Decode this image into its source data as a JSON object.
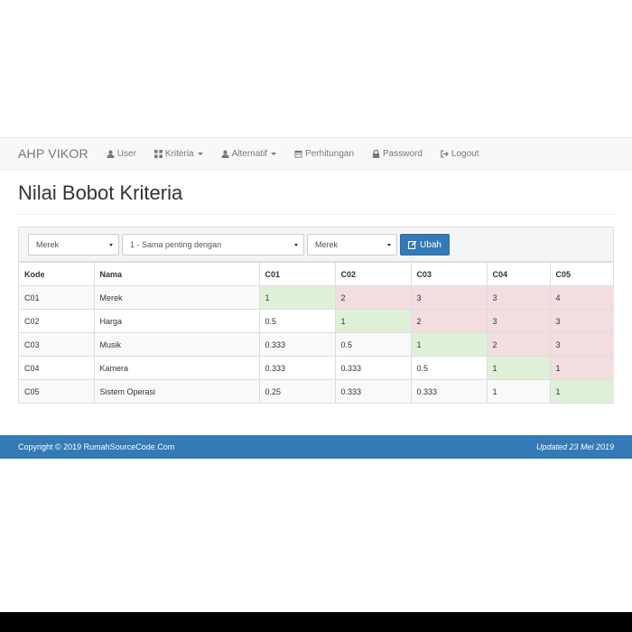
{
  "navbar": {
    "brand": "AHP VIKOR",
    "items": [
      {
        "label": "User",
        "icon": "user-icon",
        "dropdown": false
      },
      {
        "label": "Kriteria",
        "icon": "grid-icon",
        "dropdown": true
      },
      {
        "label": "Alternatif",
        "icon": "user-icon",
        "dropdown": true
      },
      {
        "label": "Perhitungan",
        "icon": "calendar-icon",
        "dropdown": false
      },
      {
        "label": "Password",
        "icon": "lock-icon",
        "dropdown": false
      },
      {
        "label": "Logout",
        "icon": "logout-icon",
        "dropdown": false
      }
    ]
  },
  "page": {
    "title": "Nilai Bobot Kriteria"
  },
  "form": {
    "select1": "Merek",
    "select2": "1 - Sama penting dengan",
    "select3": "Merek",
    "button": "Ubah"
  },
  "table": {
    "headers": [
      "Kode",
      "Nama",
      "C01",
      "C02",
      "C03",
      "C04",
      "C05"
    ],
    "rows": [
      [
        "C01",
        "Merek",
        "1",
        "2",
        "3",
        "3",
        "4"
      ],
      [
        "C02",
        "Harga",
        "0.5",
        "1",
        "2",
        "3",
        "3"
      ],
      [
        "C03",
        "Musik",
        "0.333",
        "0.5",
        "1",
        "2",
        "3"
      ],
      [
        "C04",
        "Kamera",
        "0.333",
        "0.333",
        "0.5",
        "1",
        "1"
      ],
      [
        "C05",
        "Sistem Operasi",
        "0.25",
        "0.333",
        "0.333",
        "1",
        "1"
      ]
    ]
  },
  "footer": {
    "left": "Copyright © 2019 RumahSourceCode.Com",
    "right": "Updated 23 Mei 2019"
  },
  "colors": {
    "primary": "#337ab7",
    "success_cell": "#dff0d8",
    "danger_cell": "#f2dede"
  }
}
